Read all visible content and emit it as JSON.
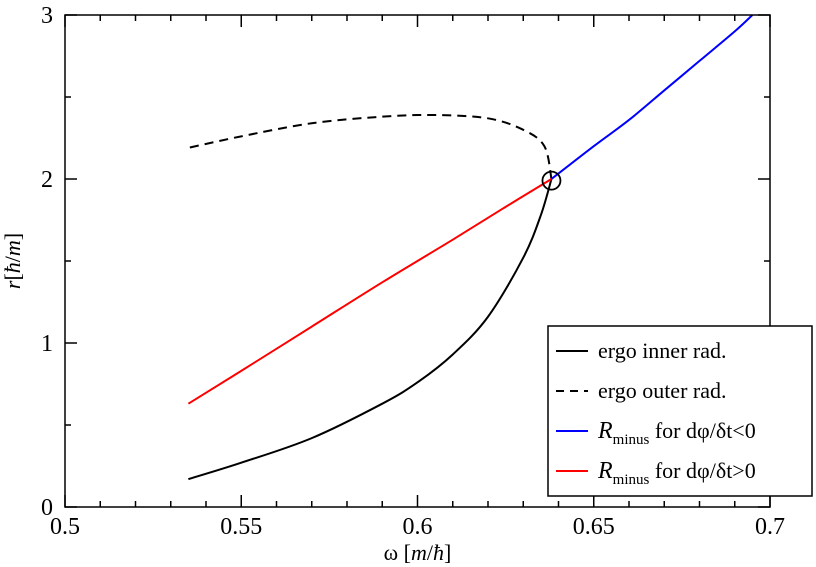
{
  "chart_data": {
    "type": "line",
    "xlabel": "ω [m/ħ]",
    "ylabel": "r[ħ/m]",
    "xlim": [
      0.5,
      0.7
    ],
    "ylim": [
      0,
      3
    ],
    "x_ticks": [
      "0.5",
      "0.55",
      "0.6",
      "0.65",
      "0.7"
    ],
    "y_ticks": [
      "0",
      "1",
      "2",
      "3"
    ],
    "legend_position": "bottom-right",
    "grid": false,
    "series": [
      {
        "name": "ergo inner rad.",
        "color": "#000000",
        "style": "solid",
        "points": [
          [
            0.535,
            0.17
          ],
          [
            0.55,
            0.27
          ],
          [
            0.57,
            0.42
          ],
          [
            0.59,
            0.63
          ],
          [
            0.6,
            0.76
          ],
          [
            0.61,
            0.93
          ],
          [
            0.62,
            1.16
          ],
          [
            0.63,
            1.52
          ],
          [
            0.635,
            1.78
          ],
          [
            0.638,
            2.0
          ]
        ]
      },
      {
        "name": "ergo outer rad.",
        "color": "#000000",
        "style": "dashed",
        "points": [
          [
            0.638,
            2.0
          ],
          [
            0.636,
            2.2
          ],
          [
            0.63,
            2.3
          ],
          [
            0.62,
            2.37
          ],
          [
            0.605,
            2.39
          ],
          [
            0.59,
            2.38
          ],
          [
            0.57,
            2.34
          ],
          [
            0.55,
            2.26
          ],
          [
            0.535,
            2.19
          ]
        ]
      },
      {
        "name": "R_minus for dφ/δt<0",
        "label_main": "R",
        "label_sub": "minus",
        "label_rest": " for dφ/δt<0",
        "color": "#0000ff",
        "style": "solid",
        "points": [
          [
            0.638,
            2.0
          ],
          [
            0.65,
            2.2
          ],
          [
            0.66,
            2.36
          ],
          [
            0.67,
            2.54
          ],
          [
            0.68,
            2.72
          ],
          [
            0.69,
            2.9
          ],
          [
            0.695,
            3.0
          ]
        ]
      },
      {
        "name": "R_minus for dφ/δt>0",
        "label_main": "R",
        "label_sub": "minus",
        "label_rest": " for dφ/δt>0",
        "color": "#ff0000",
        "style": "solid",
        "points": [
          [
            0.535,
            0.63
          ],
          [
            0.55,
            0.83
          ],
          [
            0.57,
            1.1
          ],
          [
            0.59,
            1.37
          ],
          [
            0.61,
            1.63
          ],
          [
            0.625,
            1.83
          ],
          [
            0.638,
            2.0
          ]
        ]
      }
    ],
    "marker": {
      "shape": "open-circle",
      "x": 0.638,
      "y": 1.99
    }
  }
}
